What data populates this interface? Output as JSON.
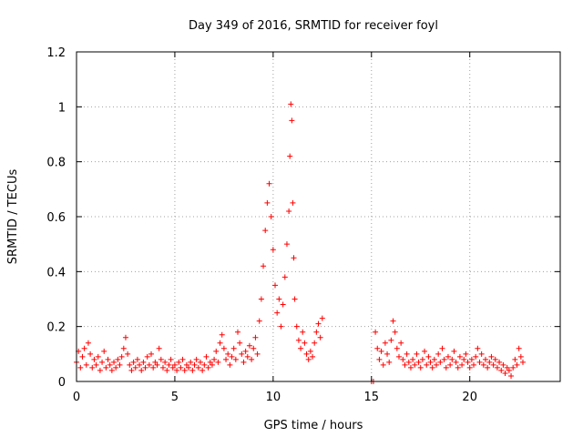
{
  "chart_data": {
    "type": "scatter",
    "title": "Day 349 of 2016, SRMTID for receiver foyl",
    "xlabel": "GPS time / hours",
    "ylabel": "SRMTID / TECUs",
    "xlim": [
      0,
      24.6
    ],
    "ylim": [
      0,
      1.2
    ],
    "x_ticks": [
      0,
      5,
      10,
      15,
      20
    ],
    "x_tick_labels": [
      "0",
      "5",
      "10",
      "15",
      "20"
    ],
    "y_ticks": [
      0,
      0.2,
      0.4,
      0.6,
      0.8,
      1.0,
      1.2
    ],
    "y_tick_labels": [
      "0",
      "0.2",
      "0.4",
      "0.6",
      "0.8",
      "1",
      "1.2"
    ],
    "grid": true,
    "marker": "+",
    "series": [
      {
        "name": "SRMTID",
        "color": "#ff0000",
        "points": [
          [
            0.0,
            0.07
          ],
          [
            0.1,
            0.11
          ],
          [
            0.2,
            0.05
          ],
          [
            0.3,
            0.09
          ],
          [
            0.4,
            0.12
          ],
          [
            0.5,
            0.06
          ],
          [
            0.6,
            0.14
          ],
          [
            0.7,
            0.1
          ],
          [
            0.8,
            0.05
          ],
          [
            0.9,
            0.08
          ],
          [
            1.0,
            0.06
          ],
          [
            1.1,
            0.09
          ],
          [
            1.2,
            0.04
          ],
          [
            1.3,
            0.07
          ],
          [
            1.4,
            0.11
          ],
          [
            1.5,
            0.05
          ],
          [
            1.6,
            0.08
          ],
          [
            1.7,
            0.06
          ],
          [
            1.8,
            0.04
          ],
          [
            1.9,
            0.07
          ],
          [
            2.0,
            0.05
          ],
          [
            2.1,
            0.08
          ],
          [
            2.2,
            0.06
          ],
          [
            2.3,
            0.09
          ],
          [
            2.4,
            0.12
          ],
          [
            2.5,
            0.16
          ],
          [
            2.6,
            0.1
          ],
          [
            2.7,
            0.06
          ],
          [
            2.8,
            0.04
          ],
          [
            2.9,
            0.07
          ],
          [
            3.0,
            0.05
          ],
          [
            3.1,
            0.08
          ],
          [
            3.2,
            0.06
          ],
          [
            3.3,
            0.04
          ],
          [
            3.4,
            0.07
          ],
          [
            3.5,
            0.05
          ],
          [
            3.6,
            0.09
          ],
          [
            3.7,
            0.06
          ],
          [
            3.8,
            0.1
          ],
          [
            3.9,
            0.05
          ],
          [
            4.0,
            0.07
          ],
          [
            4.1,
            0.06
          ],
          [
            4.2,
            0.12
          ],
          [
            4.3,
            0.08
          ],
          [
            4.4,
            0.05
          ],
          [
            4.5,
            0.07
          ],
          [
            4.6,
            0.04
          ],
          [
            4.7,
            0.06
          ],
          [
            4.8,
            0.08
          ],
          [
            4.9,
            0.05
          ],
          [
            5.0,
            0.06
          ],
          [
            5.1,
            0.04
          ],
          [
            5.2,
            0.07
          ],
          [
            5.3,
            0.05
          ],
          [
            5.4,
            0.08
          ],
          [
            5.5,
            0.04
          ],
          [
            5.6,
            0.06
          ],
          [
            5.7,
            0.05
          ],
          [
            5.8,
            0.07
          ],
          [
            5.9,
            0.04
          ],
          [
            6.0,
            0.06
          ],
          [
            6.1,
            0.08
          ],
          [
            6.2,
            0.05
          ],
          [
            6.3,
            0.07
          ],
          [
            6.4,
            0.04
          ],
          [
            6.5,
            0.06
          ],
          [
            6.6,
            0.09
          ],
          [
            6.7,
            0.05
          ],
          [
            6.8,
            0.07
          ],
          [
            6.9,
            0.06
          ],
          [
            7.0,
            0.08
          ],
          [
            7.1,
            0.11
          ],
          [
            7.2,
            0.07
          ],
          [
            7.3,
            0.14
          ],
          [
            7.4,
            0.17
          ],
          [
            7.5,
            0.12
          ],
          [
            7.6,
            0.08
          ],
          [
            7.7,
            0.1
          ],
          [
            7.8,
            0.06
          ],
          [
            7.9,
            0.09
          ],
          [
            8.0,
            0.12
          ],
          [
            8.1,
            0.08
          ],
          [
            8.2,
            0.18
          ],
          [
            8.3,
            0.14
          ],
          [
            8.4,
            0.1
          ],
          [
            8.5,
            0.07
          ],
          [
            8.6,
            0.11
          ],
          [
            8.7,
            0.09
          ],
          [
            8.8,
            0.13
          ],
          [
            8.9,
            0.08
          ],
          [
            9.0,
            0.12
          ],
          [
            9.1,
            0.16
          ],
          [
            9.2,
            0.1
          ],
          [
            9.3,
            0.22
          ],
          [
            9.4,
            0.3
          ],
          [
            9.5,
            0.42
          ],
          [
            9.6,
            0.55
          ],
          [
            9.7,
            0.65
          ],
          [
            9.8,
            0.72
          ],
          [
            9.9,
            0.6
          ],
          [
            10.0,
            0.48
          ],
          [
            10.1,
            0.35
          ],
          [
            10.2,
            0.25
          ],
          [
            10.3,
            0.3
          ],
          [
            10.4,
            0.2
          ],
          [
            10.5,
            0.28
          ],
          [
            10.6,
            0.38
          ],
          [
            10.7,
            0.5
          ],
          [
            10.8,
            0.62
          ],
          [
            10.85,
            0.82
          ],
          [
            10.9,
            1.01
          ],
          [
            10.95,
            0.95
          ],
          [
            11.0,
            0.65
          ],
          [
            11.05,
            0.45
          ],
          [
            11.1,
            0.3
          ],
          [
            11.2,
            0.2
          ],
          [
            11.3,
            0.15
          ],
          [
            11.4,
            0.12
          ],
          [
            11.5,
            0.18
          ],
          [
            11.6,
            0.14
          ],
          [
            11.7,
            0.1
          ],
          [
            11.8,
            0.08
          ],
          [
            11.9,
            0.11
          ],
          [
            12.0,
            0.09
          ],
          [
            12.1,
            0.14
          ],
          [
            12.2,
            0.18
          ],
          [
            12.3,
            0.21
          ],
          [
            12.4,
            0.16
          ],
          [
            12.5,
            0.23
          ],
          [
            15.0,
            0.0
          ],
          [
            15.1,
            0.0
          ],
          [
            15.2,
            0.18
          ],
          [
            15.3,
            0.12
          ],
          [
            15.4,
            0.08
          ],
          [
            15.5,
            0.11
          ],
          [
            15.6,
            0.06
          ],
          [
            15.7,
            0.14
          ],
          [
            15.8,
            0.1
          ],
          [
            15.9,
            0.07
          ],
          [
            16.0,
            0.15
          ],
          [
            16.1,
            0.22
          ],
          [
            16.2,
            0.18
          ],
          [
            16.3,
            0.12
          ],
          [
            16.4,
            0.09
          ],
          [
            16.5,
            0.14
          ],
          [
            16.6,
            0.08
          ],
          [
            16.7,
            0.06
          ],
          [
            16.8,
            0.1
          ],
          [
            16.9,
            0.07
          ],
          [
            17.0,
            0.05
          ],
          [
            17.1,
            0.08
          ],
          [
            17.2,
            0.06
          ],
          [
            17.3,
            0.1
          ],
          [
            17.4,
            0.07
          ],
          [
            17.5,
            0.05
          ],
          [
            17.6,
            0.08
          ],
          [
            17.7,
            0.11
          ],
          [
            17.8,
            0.06
          ],
          [
            17.9,
            0.09
          ],
          [
            18.0,
            0.07
          ],
          [
            18.1,
            0.05
          ],
          [
            18.2,
            0.08
          ],
          [
            18.3,
            0.06
          ],
          [
            18.4,
            0.1
          ],
          [
            18.5,
            0.07
          ],
          [
            18.6,
            0.12
          ],
          [
            18.7,
            0.08
          ],
          [
            18.8,
            0.05
          ],
          [
            18.9,
            0.09
          ],
          [
            19.0,
            0.06
          ],
          [
            19.1,
            0.08
          ],
          [
            19.2,
            0.11
          ],
          [
            19.3,
            0.07
          ],
          [
            19.4,
            0.05
          ],
          [
            19.5,
            0.09
          ],
          [
            19.6,
            0.06
          ],
          [
            19.7,
            0.08
          ],
          [
            19.8,
            0.1
          ],
          [
            19.9,
            0.07
          ],
          [
            20.0,
            0.05
          ],
          [
            20.1,
            0.08
          ],
          [
            20.2,
            0.06
          ],
          [
            20.3,
            0.09
          ],
          [
            20.4,
            0.12
          ],
          [
            20.5,
            0.07
          ],
          [
            20.6,
            0.1
          ],
          [
            20.7,
            0.06
          ],
          [
            20.8,
            0.08
          ],
          [
            20.9,
            0.05
          ],
          [
            21.0,
            0.07
          ],
          [
            21.1,
            0.09
          ],
          [
            21.2,
            0.06
          ],
          [
            21.3,
            0.08
          ],
          [
            21.4,
            0.05
          ],
          [
            21.5,
            0.07
          ],
          [
            21.6,
            0.04
          ],
          [
            21.7,
            0.06
          ],
          [
            21.8,
            0.03
          ],
          [
            21.9,
            0.05
          ],
          [
            22.0,
            0.04
          ],
          [
            22.1,
            0.02
          ],
          [
            22.2,
            0.05
          ],
          [
            22.3,
            0.08
          ],
          [
            22.4,
            0.06
          ],
          [
            22.5,
            0.12
          ],
          [
            22.6,
            0.09
          ],
          [
            22.7,
            0.07
          ]
        ]
      }
    ]
  }
}
